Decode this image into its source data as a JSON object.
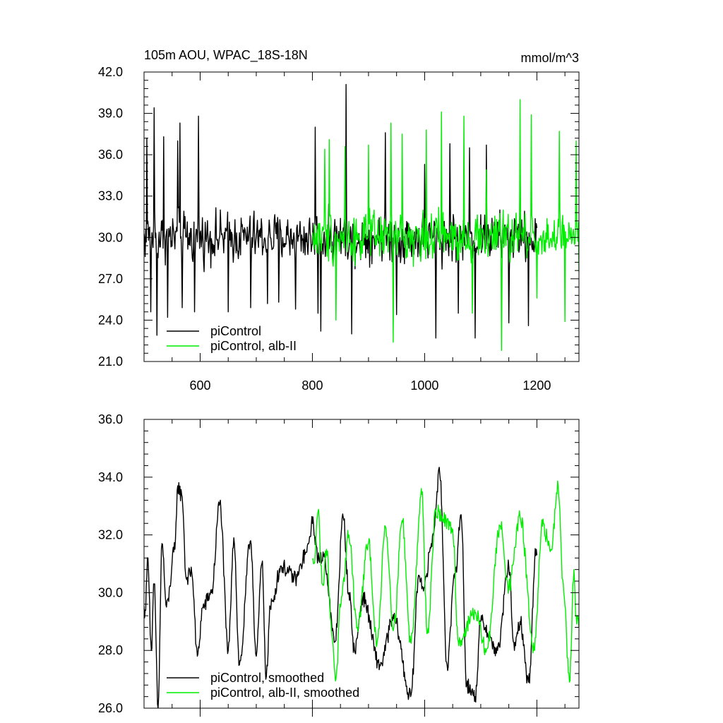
{
  "chart_data": [
    {
      "type": "line",
      "title": "105m AOU, WPAC_18S-18N",
      "units": "mmol/m^3",
      "xlim": [
        500,
        1275
      ],
      "ylim": [
        21.0,
        42.0
      ],
      "xticks": [
        600,
        800,
        1000,
        1200
      ],
      "xtick_labels": [
        "600",
        "800",
        "1000",
        "1200"
      ],
      "yticks": [
        21.0,
        24.0,
        27.0,
        30.0,
        33.0,
        36.0,
        39.0,
        42.0
      ],
      "ytick_labels": [
        "21.0",
        "24.0",
        "27.0",
        "30.0",
        "33.0",
        "36.0",
        "39.0",
        "42.0"
      ],
      "legend_position": "bottom-left",
      "series": [
        {
          "name": "piControl",
          "color": "#000000",
          "x_range": [
            500,
            1200
          ],
          "key_points": [
            [
              505,
              37.2
            ],
            [
              512,
              24.6
            ],
            [
              518,
              39.4
            ],
            [
              523,
              22.9
            ],
            [
              535,
              37.3
            ],
            [
              542,
              24.2
            ],
            [
              560,
              37.0
            ],
            [
              564,
              38.3
            ],
            [
              568,
              24.9
            ],
            [
              590,
              24.6
            ],
            [
              597,
              38.8
            ],
            [
              650,
              24.6
            ],
            [
              690,
              24.9
            ],
            [
              720,
              25.2
            ],
            [
              740,
              25.3
            ],
            [
              770,
              24.8
            ],
            [
              805,
              38.0
            ],
            [
              810,
              24.5
            ],
            [
              815,
              23.2
            ],
            [
              860,
              41.1
            ],
            [
              870,
              23.0
            ],
            [
              930,
              37.6
            ],
            [
              950,
              24.4
            ],
            [
              1000,
              35.3
            ],
            [
              1020,
              22.7
            ],
            [
              1045,
              36.8
            ],
            [
              1060,
              24.5
            ],
            [
              1080,
              36.5
            ],
            [
              1090,
              22.7
            ],
            [
              1110,
              36.7
            ],
            [
              1150,
              23.8
            ],
            [
              1170,
              36.0
            ],
            [
              1185,
              23.6
            ],
            [
              1199,
              31.0
            ]
          ],
          "mean": 30.0
        },
        {
          "name": "piControl, alb-II",
          "color": "#00ee00",
          "x_range": [
            800,
            1275
          ],
          "key_points": [
            [
              822,
              36.4
            ],
            [
              830,
              37.1
            ],
            [
              842,
              24.0
            ],
            [
              858,
              36.6
            ],
            [
              900,
              36.7
            ],
            [
              940,
              38.3
            ],
            [
              944,
              22.4
            ],
            [
              960,
              37.5
            ],
            [
              1003,
              37.8
            ],
            [
              1030,
              39.1
            ],
            [
              1070,
              38.8
            ],
            [
              1085,
              24.5
            ],
            [
              1110,
              34.9
            ],
            [
              1137,
              21.8
            ],
            [
              1170,
              40.0
            ],
            [
              1190,
              38.9
            ],
            [
              1200,
              25.6
            ],
            [
              1240,
              37.7
            ],
            [
              1250,
              23.9
            ],
            [
              1270,
              37.0
            ],
            [
              1275,
              27.5
            ]
          ],
          "mean": 30.0
        }
      ]
    },
    {
      "type": "line",
      "xlim": [
        500,
        1275
      ],
      "ylim": [
        26.0,
        36.0
      ],
      "xticks": [
        600,
        800,
        1000,
        1200
      ],
      "yticks": [
        26.0,
        28.0,
        30.0,
        32.0,
        34.0,
        36.0
      ],
      "ytick_labels": [
        "26.0",
        "28.0",
        "30.0",
        "32.0",
        "34.0",
        "36.0"
      ],
      "legend_position": "bottom-left",
      "series": [
        {
          "name": "piControl, smoothed",
          "color": "#000000",
          "x_range": [
            500,
            1200
          ],
          "key_points": [
            [
              502,
              29.4
            ],
            [
              507,
              31.2
            ],
            [
              513,
              28.0
            ],
            [
              518,
              30.3
            ],
            [
              525,
              26.0
            ],
            [
              532,
              31.7
            ],
            [
              540,
              29.5
            ],
            [
              555,
              31.5
            ],
            [
              560,
              33.7
            ],
            [
              568,
              33.3
            ],
            [
              575,
              30.5
            ],
            [
              585,
              30.7
            ],
            [
              595,
              27.8
            ],
            [
              605,
              29.5
            ],
            [
              620,
              30.0
            ],
            [
              635,
              33.1
            ],
            [
              650,
              28.0
            ],
            [
              660,
              31.9
            ],
            [
              670,
              27.5
            ],
            [
              690,
              31.8
            ],
            [
              700,
              27.8
            ],
            [
              710,
              31.0
            ],
            [
              718,
              27.1
            ],
            [
              725,
              29.5
            ],
            [
              745,
              30.9
            ],
            [
              770,
              30.5
            ],
            [
              790,
              31.4
            ],
            [
              800,
              32.4
            ],
            [
              812,
              31.1
            ],
            [
              820,
              31.3
            ],
            [
              840,
              28.3
            ],
            [
              855,
              32.6
            ],
            [
              865,
              30.0
            ],
            [
              875,
              28.0
            ],
            [
              890,
              29.8
            ],
            [
              920,
              27.5
            ],
            [
              945,
              29.1
            ],
            [
              975,
              26.4
            ],
            [
              990,
              30.6
            ],
            [
              1000,
              30.2
            ],
            [
              1012,
              31.7
            ],
            [
              1027,
              34.1
            ],
            [
              1040,
              27.5
            ],
            [
              1055,
              30.8
            ],
            [
              1065,
              32.7
            ],
            [
              1075,
              26.8
            ],
            [
              1090,
              26.4
            ],
            [
              1100,
              29.0
            ],
            [
              1130,
              28.0
            ],
            [
              1150,
              30.9
            ],
            [
              1160,
              28.0
            ],
            [
              1170,
              29.0
            ],
            [
              1185,
              26.9
            ],
            [
              1199,
              31.5
            ]
          ],
          "mean": 29.9
        },
        {
          "name": "piControl, alb-II, smoothed",
          "color": "#00ee00",
          "x_range": [
            800,
            1275
          ],
          "key_points": [
            [
              802,
              31.0
            ],
            [
              810,
              32.8
            ],
            [
              818,
              30.3
            ],
            [
              825,
              31.5
            ],
            [
              835,
              28.5
            ],
            [
              842,
              27.0
            ],
            [
              850,
              29.5
            ],
            [
              865,
              32.0
            ],
            [
              880,
              28.8
            ],
            [
              900,
              31.7
            ],
            [
              915,
              28.2
            ],
            [
              930,
              32.3
            ],
            [
              945,
              28.8
            ],
            [
              960,
              32.5
            ],
            [
              975,
              28.3
            ],
            [
              995,
              33.4
            ],
            [
              1005,
              28.6
            ],
            [
              1020,
              32.8
            ],
            [
              1050,
              32.2
            ],
            [
              1060,
              28.3
            ],
            [
              1090,
              29.3
            ],
            [
              1110,
              28.0
            ],
            [
              1135,
              32.3
            ],
            [
              1150,
              30.2
            ],
            [
              1170,
              32.6
            ],
            [
              1195,
              28.0
            ],
            [
              1210,
              32.3
            ],
            [
              1225,
              31.5
            ],
            [
              1238,
              33.7
            ],
            [
              1248,
              30.0
            ],
            [
              1258,
              26.9
            ],
            [
              1266,
              30.8
            ],
            [
              1270,
              29.2
            ],
            [
              1275,
              28.8
            ]
          ],
          "mean": 30.0
        }
      ]
    }
  ]
}
